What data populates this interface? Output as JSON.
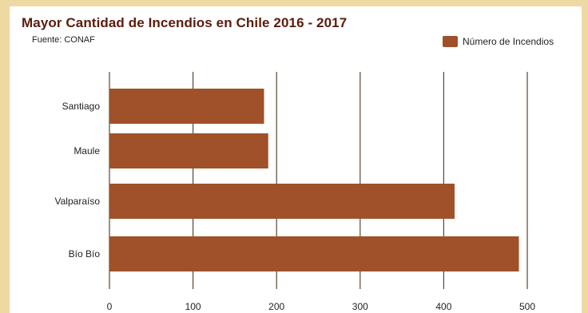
{
  "header": {
    "title": "Mayor Cantidad de Incendios en Chile 2016 - 2017",
    "source": "Fuente: CONAF"
  },
  "colors": {
    "bar": "#a0512a",
    "title": "#5a1c0c",
    "grid": "#5a4632",
    "page_border": "#efd9a3"
  },
  "chart_data": {
    "type": "bar",
    "orientation": "horizontal",
    "categories": [
      "Santiago",
      "Maule",
      "Valparaíso",
      "Bío Bío"
    ],
    "series": [
      {
        "name": "Número de Incendios",
        "values": [
          185,
          190,
          413,
          490
        ]
      }
    ],
    "title": "Mayor Cantidad de Incendios en Chile 2016 - 2017",
    "subtitle": "Fuente: CONAF",
    "xlim": [
      0,
      500
    ],
    "xticks": [
      0,
      100,
      200,
      300,
      400,
      500
    ],
    "grid": true,
    "legend": "top-right"
  }
}
